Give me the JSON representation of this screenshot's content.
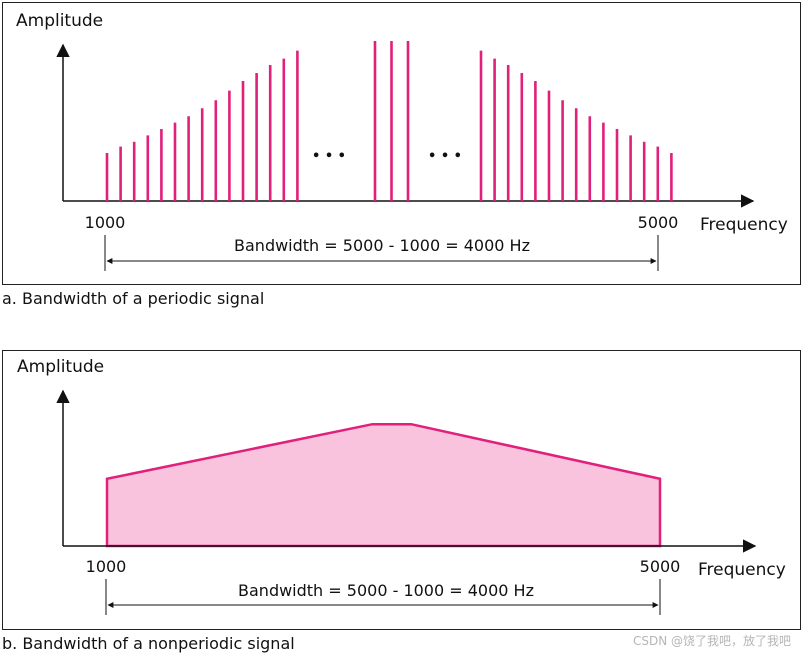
{
  "panel_a": {
    "amplitude_label": "Amplitude",
    "frequency_label": "Frequency",
    "low_label": "1000",
    "high_label": "5000",
    "bandwidth_text": "Bandwidth = 5000 - 1000 = 4000 Hz",
    "ellipsis_left": "• • •",
    "ellipsis_right": "• • •",
    "caption": "a. Bandwidth of a periodic signal"
  },
  "panel_b": {
    "amplitude_label": "Amplitude",
    "frequency_label": "Frequency",
    "low_label": "1000",
    "high_label": "5000",
    "bandwidth_text": "Bandwidth = 5000 - 1000 = 4000 Hz",
    "caption": "b. Bandwidth of a nonperiodic signal"
  },
  "watermark": "CSDN @饶了我吧，放了我吧",
  "colors": {
    "signal": "#e0207a",
    "fill": "#f9c3dd",
    "axis": "#111111"
  },
  "chart_data": [
    {
      "type": "bar",
      "groups": [
        {
          "heights": [
            0.3,
            0.34,
            0.37,
            0.41,
            0.45,
            0.49,
            0.53,
            0.58,
            0.63,
            0.69,
            0.75,
            0.8,
            0.85,
            0.89,
            0.94
          ]
        },
        {
          "heights": [
            1.0,
            1.0,
            1.0
          ]
        },
        {
          "heights": [
            0.94,
            0.89,
            0.85,
            0.8,
            0.75,
            0.69,
            0.63,
            0.58,
            0.53,
            0.49,
            0.45,
            0.41,
            0.37,
            0.34,
            0.3
          ]
        }
      ]
    },
    {
      "type": "area",
      "points": [
        [
          0,
          0
        ],
        [
          0,
          0.48
        ],
        [
          0.48,
          0.87
        ],
        [
          0.55,
          0.87
        ],
        [
          1,
          0.48
        ],
        [
          1,
          0
        ]
      ]
    }
  ]
}
